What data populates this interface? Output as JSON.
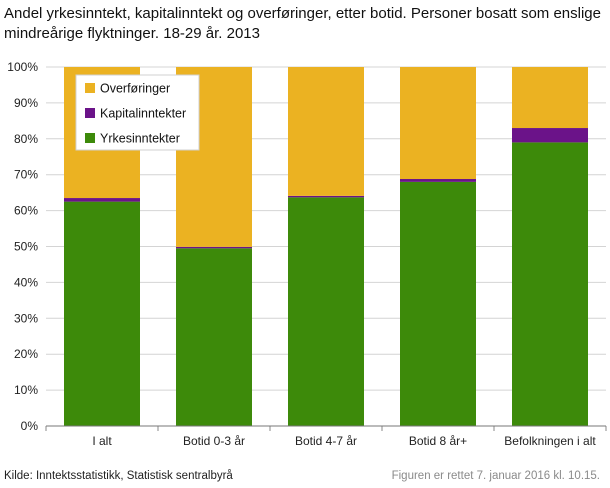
{
  "chart_data": {
    "type": "bar",
    "stacked": true,
    "title": "Andel yrkesinntekt, kapitalinntekt og overføringer, etter botid. Personer bosatt som enslige mindreårige flyktninger. 18-29 år. 2013",
    "xlabel": "",
    "ylabel": "",
    "ylim": [
      0,
      100
    ],
    "y_ticks": [
      "0%",
      "10%",
      "20%",
      "30%",
      "40%",
      "50%",
      "60%",
      "70%",
      "80%",
      "90%",
      "100%"
    ],
    "grid": true,
    "legend_position": "top-left",
    "categories": [
      "I alt",
      "Botid 0-3 år",
      "Botid 4-7 år",
      "Botid 8 år+",
      "Befolkningen i alt"
    ],
    "series": [
      {
        "name": "Yrkesinntekter",
        "color": "#3d8a0a",
        "values": [
          62.5,
          49.5,
          63.7,
          68.0,
          79.0
        ]
      },
      {
        "name": "Kapitalinntekter",
        "color": "#6b1389",
        "values": [
          1.0,
          0.4,
          0.4,
          0.8,
          4.0
        ]
      },
      {
        "name": "Overføringer",
        "color": "#ebb222",
        "values": [
          36.5,
          50.1,
          35.9,
          31.2,
          17.0
        ]
      }
    ],
    "legend_order": [
      "Overføringer",
      "Kapitalinntekter",
      "Yrkesinntekter"
    ]
  },
  "footer": {
    "source": "Kilde: Inntektsstatistikk,  Statistisk sentralbyrå",
    "note": "Figuren er rettet 7. januar 2016 kl. 10.15."
  }
}
